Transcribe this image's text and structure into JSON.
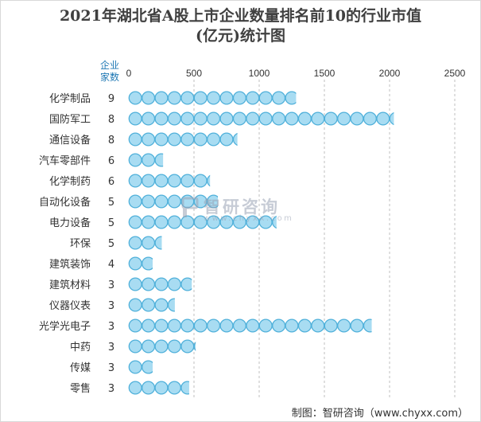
{
  "title_line1": "2021年湖北省A股上市企业数量排名前10的行业市值",
  "title_line2": "(亿元)统计图",
  "source": "制图：智研咨询（www.chyxx.com）",
  "watermark": {
    "name": "智研咨询",
    "url": "www.chyxx.com"
  },
  "chart_data": {
    "type": "bar",
    "title": "2021年湖北省A股上市企业数量排名前10的行业市值(亿元)统计图",
    "count_header": [
      "企业",
      "家数"
    ],
    "categories": [
      "化学制品",
      "国防军工",
      "通信设备",
      "汽车零部件",
      "化学制药",
      "自动化设备",
      "电力设备",
      "环保",
      "建筑装饰",
      "建筑材料",
      "仪器仪表",
      "光学光电子",
      "中药",
      "传媒",
      "零售"
    ],
    "counts": [
      9,
      8,
      8,
      6,
      6,
      5,
      5,
      5,
      4,
      3,
      3,
      3,
      3,
      3,
      3
    ],
    "values": [
      1280,
      2030,
      830,
      260,
      620,
      680,
      1130,
      250,
      180,
      480,
      350,
      1860,
      510,
      180,
      460
    ],
    "xlim": [
      0,
      2500
    ],
    "xticks": [
      0,
      500,
      1000,
      1500,
      2000,
      2500
    ],
    "grid": true,
    "marker_unit": 100,
    "colors": {
      "fill": "#a8dcf2",
      "stroke": "#4fb0da",
      "grid": "#bfbfbf",
      "header": "#1f78b4"
    }
  }
}
